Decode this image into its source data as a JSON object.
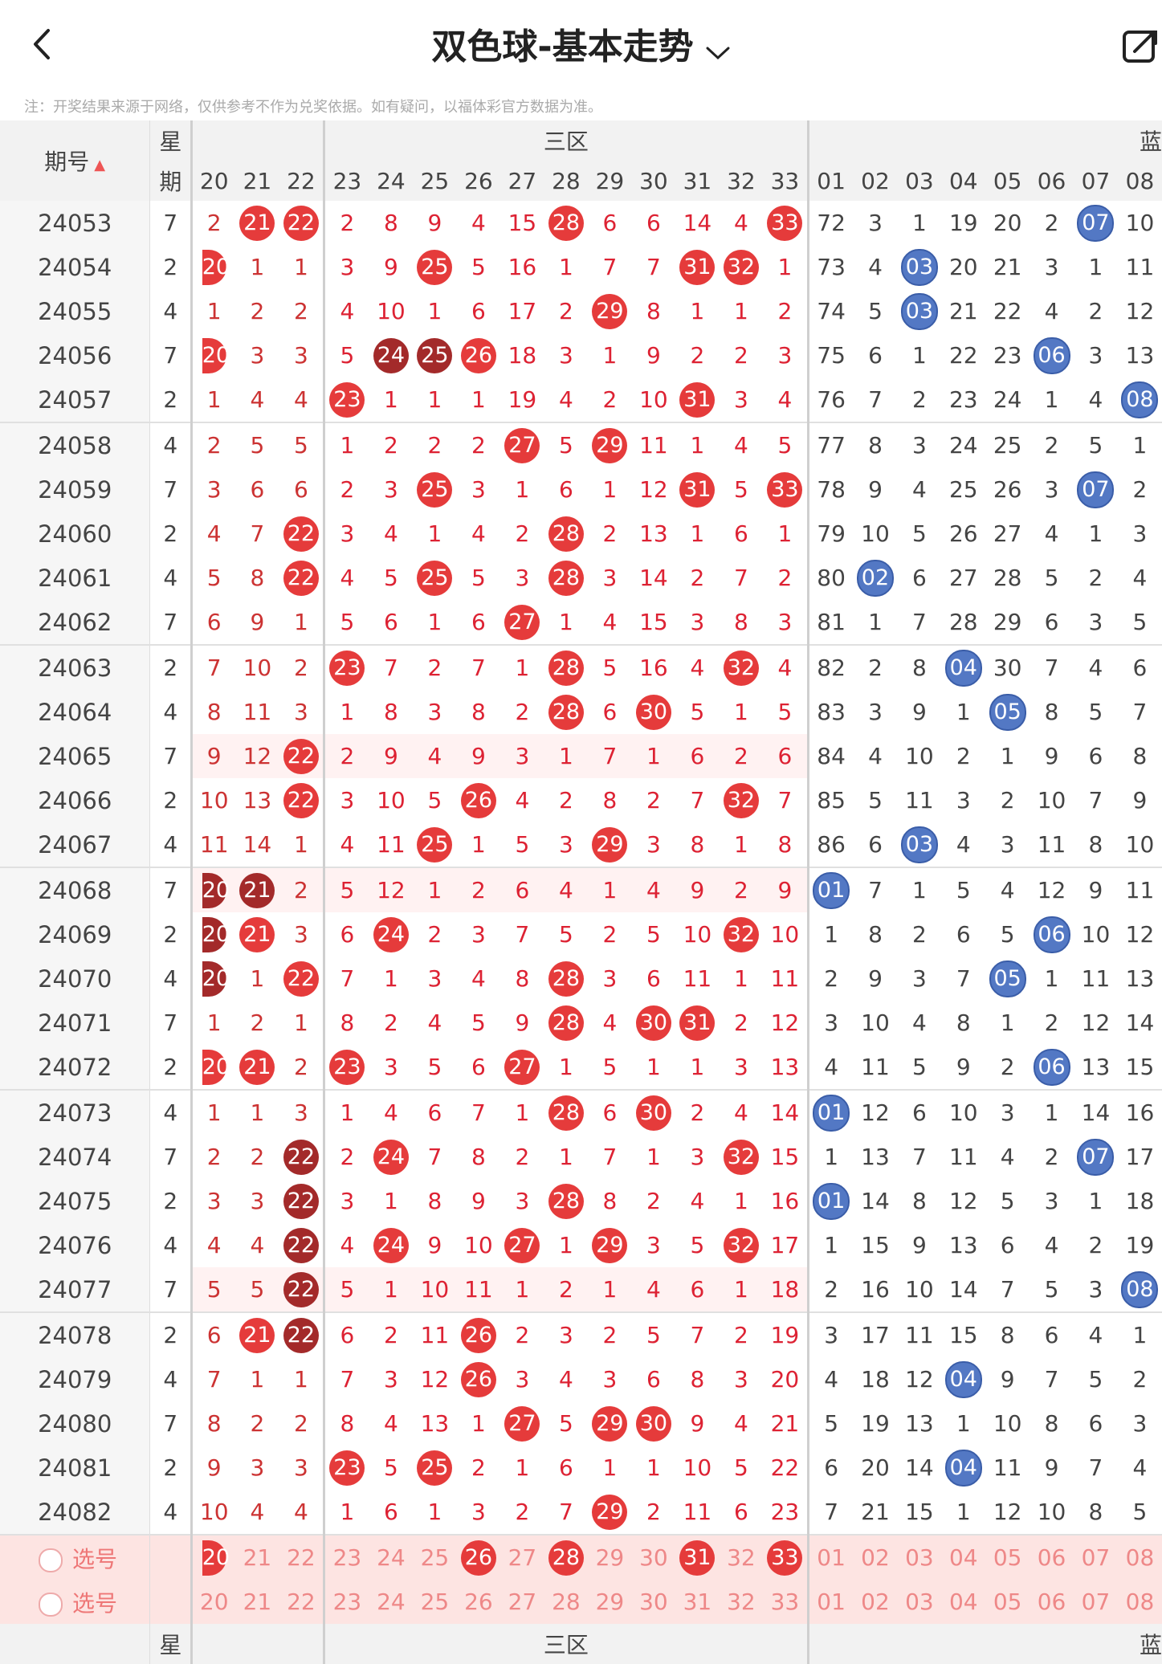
{
  "header": {
    "title": "双色球-基本走势"
  },
  "note": "注：开奖结果来源于网络，仅供参考不作为兑奖依据。如有疑问，以福体彩官方数据为准。",
  "table": {
    "issue_header": "期号",
    "day_header_top": "星",
    "day_header_bottom": "期",
    "zone3_label": "三区",
    "blue_label": "蓝",
    "cols_zone2": [
      "20",
      "21",
      "22"
    ],
    "cols_zone3": [
      "23",
      "24",
      "25",
      "26",
      "27",
      "28",
      "29",
      "30",
      "31",
      "32",
      "33"
    ],
    "cols_blue": [
      "01",
      "02",
      "03",
      "04",
      "05",
      "06",
      "07",
      "08"
    ],
    "rows": [
      {
        "issue": "24053",
        "day": "7",
        "z2": [
          "2",
          "21",
          "22"
        ],
        "z3": [
          "2",
          "8",
          "9",
          "4",
          "15",
          "28",
          "6",
          "6",
          "14",
          "4",
          "33"
        ],
        "blue": [
          "72",
          "3",
          "1",
          "19",
          "20",
          "2",
          "07",
          "10"
        ]
      },
      {
        "issue": "24054",
        "day": "2",
        "z2": [
          "20",
          "1",
          "1"
        ],
        "z3": [
          "3",
          "9",
          "25",
          "5",
          "16",
          "1",
          "7",
          "7",
          "31",
          "32",
          "1"
        ],
        "blue": [
          "73",
          "4",
          "03",
          "20",
          "21",
          "3",
          "1",
          "11"
        ]
      },
      {
        "issue": "24055",
        "day": "4",
        "z2": [
          "1",
          "2",
          "2"
        ],
        "z3": [
          "4",
          "10",
          "1",
          "6",
          "17",
          "2",
          "29",
          "8",
          "1",
          "1",
          "2"
        ],
        "blue": [
          "74",
          "5",
          "03",
          "21",
          "22",
          "4",
          "2",
          "12"
        ]
      },
      {
        "issue": "24056",
        "day": "7",
        "z2": [
          "20",
          "3",
          "3"
        ],
        "z3": [
          "5",
          "24",
          "25",
          "26",
          "18",
          "3",
          "1",
          "9",
          "2",
          "2",
          "3"
        ],
        "blue": [
          "75",
          "6",
          "1",
          "22",
          "23",
          "06",
          "3",
          "13"
        ]
      },
      {
        "issue": "24057",
        "day": "2",
        "z2": [
          "1",
          "4",
          "4"
        ],
        "z3": [
          "23",
          "1",
          "1",
          "1",
          "19",
          "4",
          "2",
          "10",
          "31",
          "3",
          "4"
        ],
        "blue": [
          "76",
          "7",
          "2",
          "23",
          "24",
          "1",
          "4",
          "08"
        ]
      },
      {
        "issue": "24058",
        "day": "4",
        "z2": [
          "2",
          "5",
          "5"
        ],
        "z3": [
          "1",
          "2",
          "2",
          "2",
          "27",
          "5",
          "29",
          "11",
          "1",
          "4",
          "5"
        ],
        "blue": [
          "77",
          "8",
          "3",
          "24",
          "25",
          "2",
          "5",
          "1"
        ]
      },
      {
        "issue": "24059",
        "day": "7",
        "z2": [
          "3",
          "6",
          "6"
        ],
        "z3": [
          "2",
          "3",
          "25",
          "3",
          "1",
          "6",
          "1",
          "12",
          "31",
          "5",
          "33"
        ],
        "blue": [
          "78",
          "9",
          "4",
          "25",
          "26",
          "3",
          "07",
          "2"
        ]
      },
      {
        "issue": "24060",
        "day": "2",
        "z2": [
          "4",
          "7",
          "22"
        ],
        "z3": [
          "3",
          "4",
          "1",
          "4",
          "2",
          "28",
          "2",
          "13",
          "1",
          "6",
          "1"
        ],
        "blue": [
          "79",
          "10",
          "5",
          "26",
          "27",
          "4",
          "1",
          "3"
        ]
      },
      {
        "issue": "24061",
        "day": "4",
        "z2": [
          "5",
          "8",
          "22"
        ],
        "z3": [
          "4",
          "5",
          "25",
          "5",
          "3",
          "28",
          "3",
          "14",
          "2",
          "7",
          "2"
        ],
        "blue": [
          "80",
          "02",
          "6",
          "27",
          "28",
          "5",
          "2",
          "4"
        ]
      },
      {
        "issue": "24062",
        "day": "7",
        "z2": [
          "6",
          "9",
          "1"
        ],
        "z3": [
          "5",
          "6",
          "1",
          "6",
          "27",
          "1",
          "4",
          "15",
          "3",
          "8",
          "3"
        ],
        "blue": [
          "81",
          "1",
          "7",
          "28",
          "29",
          "6",
          "3",
          "5"
        ]
      },
      {
        "issue": "24063",
        "day": "2",
        "z2": [
          "7",
          "10",
          "2"
        ],
        "z3": [
          "23",
          "7",
          "2",
          "7",
          "1",
          "28",
          "5",
          "16",
          "4",
          "32",
          "4"
        ],
        "blue": [
          "82",
          "2",
          "8",
          "04",
          "30",
          "7",
          "4",
          "6"
        ]
      },
      {
        "issue": "24064",
        "day": "4",
        "z2": [
          "8",
          "11",
          "3"
        ],
        "z3": [
          "1",
          "8",
          "3",
          "8",
          "2",
          "28",
          "6",
          "30",
          "5",
          "1",
          "5"
        ],
        "blue": [
          "83",
          "3",
          "9",
          "1",
          "05",
          "8",
          "5",
          "7"
        ]
      },
      {
        "issue": "24065",
        "day": "7",
        "z2": [
          "9",
          "12",
          "22"
        ],
        "z3": [
          "2",
          "9",
          "4",
          "9",
          "3",
          "1",
          "7",
          "1",
          "6",
          "2",
          "6"
        ],
        "blue": [
          "84",
          "4",
          "10",
          "2",
          "1",
          "9",
          "6",
          "8"
        ]
      },
      {
        "issue": "24066",
        "day": "2",
        "z2": [
          "10",
          "13",
          "22"
        ],
        "z3": [
          "3",
          "10",
          "5",
          "26",
          "4",
          "2",
          "8",
          "2",
          "7",
          "32",
          "7"
        ],
        "blue": [
          "85",
          "5",
          "11",
          "3",
          "2",
          "10",
          "7",
          "9"
        ]
      },
      {
        "issue": "24067",
        "day": "4",
        "z2": [
          "11",
          "14",
          "1"
        ],
        "z3": [
          "4",
          "11",
          "25",
          "1",
          "5",
          "3",
          "29",
          "3",
          "8",
          "1",
          "8"
        ],
        "blue": [
          "86",
          "6",
          "03",
          "4",
          "3",
          "11",
          "8",
          "10"
        ]
      },
      {
        "issue": "24068",
        "day": "7",
        "z2": [
          "20",
          "21",
          "2"
        ],
        "z3": [
          "5",
          "12",
          "1",
          "2",
          "6",
          "4",
          "1",
          "4",
          "9",
          "2",
          "9"
        ],
        "blue": [
          "01",
          "7",
          "1",
          "5",
          "4",
          "12",
          "9",
          "11"
        ]
      },
      {
        "issue": "24069",
        "day": "2",
        "z2": [
          "20",
          "21",
          "3"
        ],
        "z3": [
          "6",
          "24",
          "2",
          "3",
          "7",
          "5",
          "2",
          "5",
          "10",
          "32",
          "10"
        ],
        "blue": [
          "1",
          "8",
          "2",
          "6",
          "5",
          "06",
          "10",
          "12"
        ]
      },
      {
        "issue": "24070",
        "day": "4",
        "z2": [
          "20",
          "1",
          "22"
        ],
        "z3": [
          "7",
          "1",
          "3",
          "4",
          "8",
          "28",
          "3",
          "6",
          "11",
          "1",
          "11"
        ],
        "blue": [
          "2",
          "9",
          "3",
          "7",
          "05",
          "1",
          "11",
          "13"
        ]
      },
      {
        "issue": "24071",
        "day": "7",
        "z2": [
          "1",
          "2",
          "1"
        ],
        "z3": [
          "8",
          "2",
          "4",
          "5",
          "9",
          "28",
          "4",
          "30",
          "31",
          "2",
          "12"
        ],
        "blue": [
          "3",
          "10",
          "4",
          "8",
          "1",
          "2",
          "12",
          "14"
        ]
      },
      {
        "issue": "24072",
        "day": "2",
        "z2": [
          "20",
          "21",
          "2"
        ],
        "z3": [
          "23",
          "3",
          "5",
          "6",
          "27",
          "1",
          "5",
          "1",
          "1",
          "3",
          "13"
        ],
        "blue": [
          "4",
          "11",
          "5",
          "9",
          "2",
          "06",
          "13",
          "15"
        ]
      },
      {
        "issue": "24073",
        "day": "4",
        "z2": [
          "1",
          "1",
          "3"
        ],
        "z3": [
          "1",
          "4",
          "6",
          "7",
          "1",
          "28",
          "6",
          "30",
          "2",
          "4",
          "14"
        ],
        "blue": [
          "01",
          "12",
          "6",
          "10",
          "3",
          "1",
          "14",
          "16"
        ]
      },
      {
        "issue": "24074",
        "day": "7",
        "z2": [
          "2",
          "2",
          "22"
        ],
        "z3": [
          "2",
          "24",
          "7",
          "8",
          "2",
          "1",
          "7",
          "1",
          "3",
          "32",
          "15"
        ],
        "blue": [
          "1",
          "13",
          "7",
          "11",
          "4",
          "2",
          "07",
          "17"
        ]
      },
      {
        "issue": "24075",
        "day": "2",
        "z2": [
          "3",
          "3",
          "22"
        ],
        "z3": [
          "3",
          "1",
          "8",
          "9",
          "3",
          "28",
          "8",
          "2",
          "4",
          "1",
          "16"
        ],
        "blue": [
          "01",
          "14",
          "8",
          "12",
          "5",
          "3",
          "1",
          "18"
        ]
      },
      {
        "issue": "24076",
        "day": "4",
        "z2": [
          "4",
          "4",
          "22"
        ],
        "z3": [
          "4",
          "24",
          "9",
          "10",
          "27",
          "1",
          "29",
          "3",
          "5",
          "32",
          "17"
        ],
        "blue": [
          "1",
          "15",
          "9",
          "13",
          "6",
          "4",
          "2",
          "19"
        ]
      },
      {
        "issue": "24077",
        "day": "7",
        "z2": [
          "5",
          "5",
          "22"
        ],
        "z3": [
          "5",
          "1",
          "10",
          "11",
          "1",
          "2",
          "1",
          "4",
          "6",
          "1",
          "18"
        ],
        "blue": [
          "2",
          "16",
          "10",
          "14",
          "7",
          "5",
          "3",
          "08"
        ]
      },
      {
        "issue": "24078",
        "day": "2",
        "z2": [
          "6",
          "21",
          "22"
        ],
        "z3": [
          "6",
          "2",
          "11",
          "26",
          "2",
          "3",
          "2",
          "5",
          "7",
          "2",
          "19"
        ],
        "blue": [
          "3",
          "17",
          "11",
          "15",
          "8",
          "6",
          "4",
          "1"
        ]
      },
      {
        "issue": "24079",
        "day": "4",
        "z2": [
          "7",
          "1",
          "1"
        ],
        "z3": [
          "7",
          "3",
          "12",
          "26",
          "3",
          "4",
          "3",
          "6",
          "8",
          "3",
          "20"
        ],
        "blue": [
          "4",
          "18",
          "12",
          "04",
          "9",
          "7",
          "5",
          "2"
        ]
      },
      {
        "issue": "24080",
        "day": "7",
        "z2": [
          "8",
          "2",
          "2"
        ],
        "z3": [
          "8",
          "4",
          "13",
          "1",
          "27",
          "5",
          "29",
          "30",
          "9",
          "4",
          "21"
        ],
        "blue": [
          "5",
          "19",
          "13",
          "1",
          "10",
          "8",
          "6",
          "3"
        ]
      },
      {
        "issue": "24081",
        "day": "2",
        "z2": [
          "9",
          "3",
          "3"
        ],
        "z3": [
          "23",
          "5",
          "25",
          "2",
          "1",
          "6",
          "1",
          "1",
          "10",
          "5",
          "22"
        ],
        "blue": [
          "6",
          "20",
          "14",
          "04",
          "11",
          "9",
          "7",
          "4"
        ]
      },
      {
        "issue": "24082",
        "day": "4",
        "z2": [
          "10",
          "4",
          "4"
        ],
        "z3": [
          "1",
          "6",
          "1",
          "3",
          "2",
          "7",
          "29",
          "2",
          "11",
          "6",
          "23"
        ],
        "blue": [
          "7",
          "21",
          "15",
          "1",
          "12",
          "10",
          "8",
          "5"
        ]
      }
    ],
    "pick_label": "选号",
    "pick1": {
      "z2": [
        "20",
        "21",
        "22"
      ],
      "z3": [
        "23",
        "24",
        "25",
        "26",
        "27",
        "28",
        "29",
        "30",
        "31",
        "32",
        "33"
      ],
      "blue": [
        "01",
        "02",
        "03",
        "04",
        "05",
        "06",
        "07",
        "08"
      ]
    },
    "pick2": {
      "z2": [
        "20",
        "21",
        "22"
      ],
      "z3": [
        "23",
        "24",
        "25",
        "26",
        "27",
        "28",
        "29",
        "30",
        "31",
        "32",
        "33"
      ],
      "blue": [
        "01",
        "02",
        "03",
        "04",
        "05",
        "06",
        "07",
        "08"
      ]
    },
    "footer_day": "星",
    "footer_zone3": "三区",
    "footer_blue": "蓝"
  },
  "colors": {
    "red_ball": "#e53b3b",
    "dark_red_ball": "#a32a2a",
    "blue_ball": "#5378c4",
    "tint": "#fff2f2",
    "pick_bg": "#fde4e2"
  }
}
